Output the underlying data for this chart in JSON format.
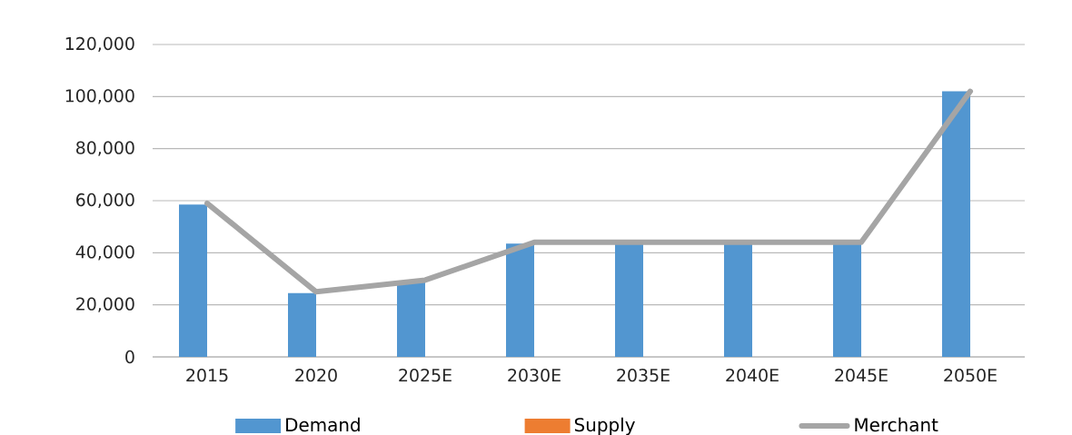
{
  "chart_data": {
    "type": "bar",
    "categories": [
      "2015",
      "2020",
      "2025E",
      "2030E",
      "2035E",
      "2040E",
      "2045E",
      "2050E"
    ],
    "series": [
      {
        "name": "Demand",
        "color": "#5296d0",
        "values": [
          58500,
          24500,
          29000,
          43500,
          43500,
          43500,
          43500,
          102000
        ]
      },
      {
        "name": "Supply",
        "color": "#ed7d31",
        "values": [
          0,
          0,
          0,
          0,
          0,
          0,
          0,
          0
        ]
      },
      {
        "name": "Merchant",
        "type": "line",
        "color": "#a5a5a5",
        "values": [
          59000,
          25000,
          29500,
          44000,
          44000,
          44000,
          44000,
          102000
        ]
      }
    ],
    "ylim": [
      0,
      120000
    ],
    "yticks": [
      0,
      {
        "value": 20000,
        "label": "20,000"
      },
      {
        "value": 40000,
        "label": "40,000"
      },
      {
        "value": 60000,
        "label": "60,000"
      },
      {
        "value": 80000,
        "label": "80,000"
      },
      {
        "value": 100000,
        "label": "100,000"
      },
      {
        "value": 120000,
        "label": "120,000"
      }
    ],
    "grid": "y",
    "legend": "bottom",
    "marker": "none",
    "line_style": "solid"
  }
}
